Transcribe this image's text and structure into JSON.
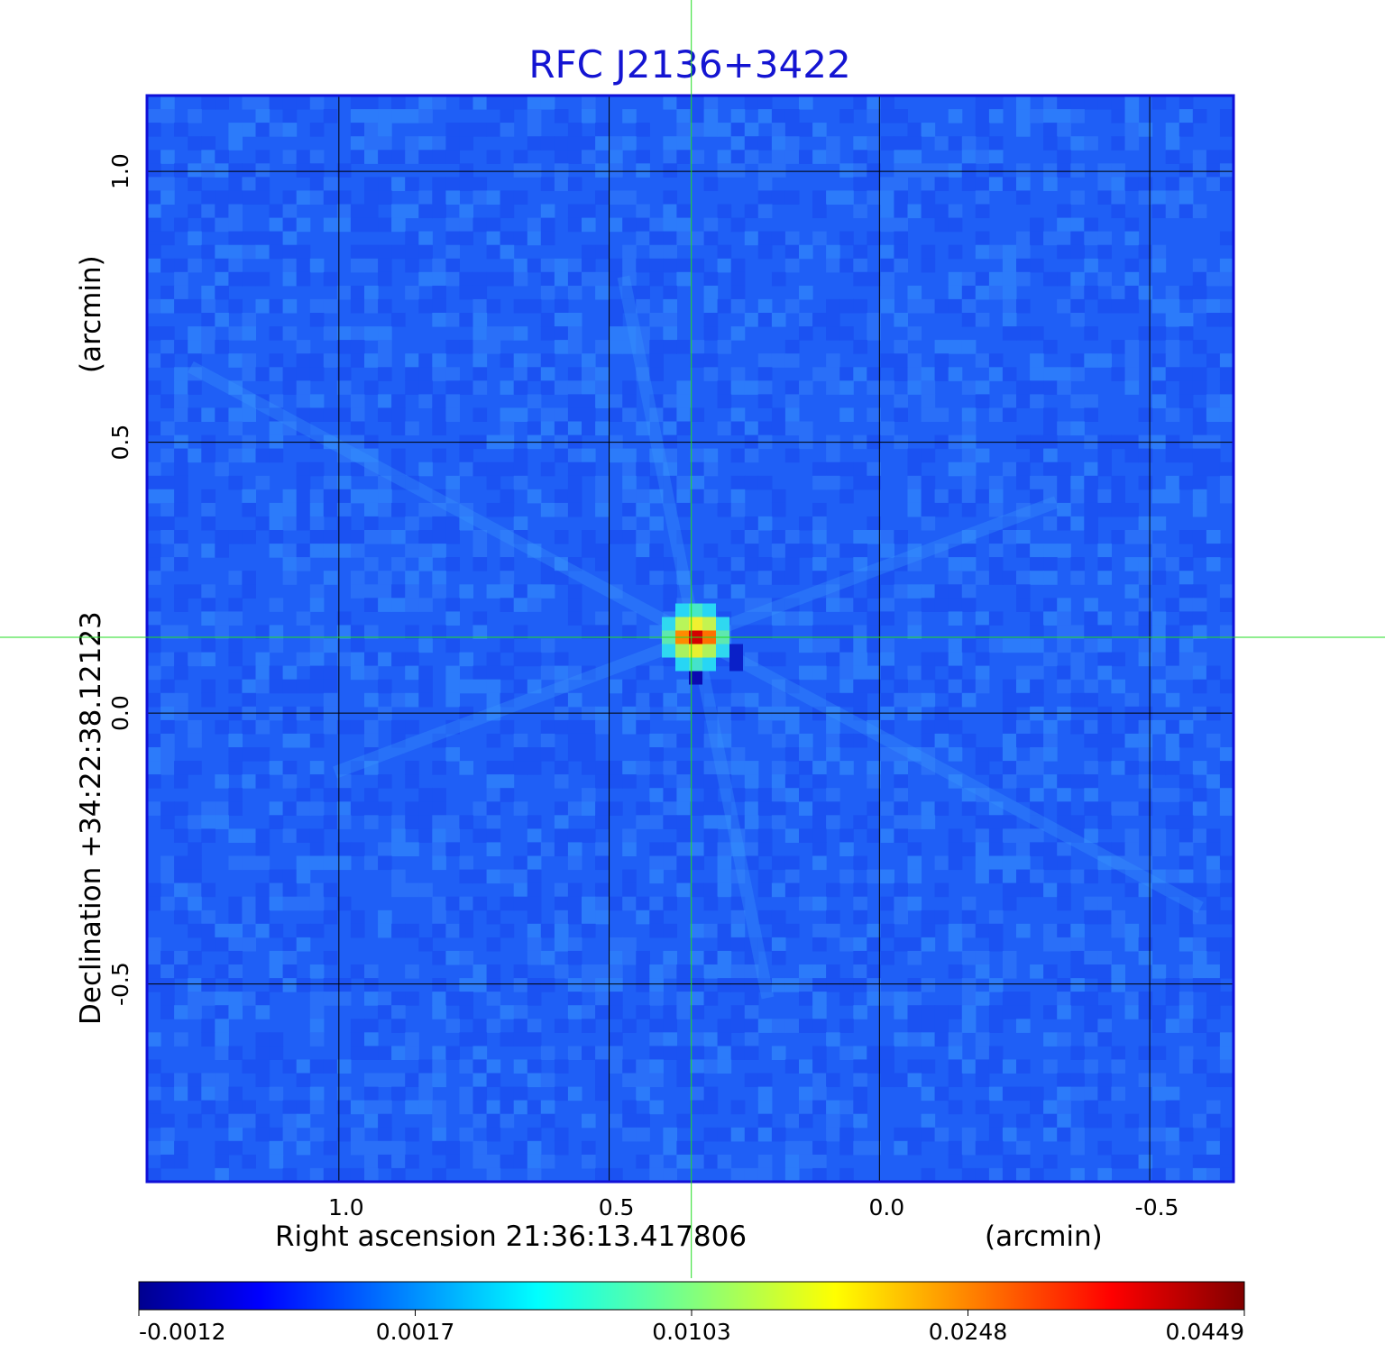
{
  "chart_data": {
    "type": "heatmap",
    "title": "RFC J2136+3422",
    "title_color": "#1414d2",
    "xlabel": "Right ascension  21:36:13.417806",
    "xunit": "(arcmin)",
    "ylabel": "Declination  +34:22:38.12123",
    "yunit": "(arcmin)",
    "x_ticks": [
      "1.0",
      "0.5",
      "0.0",
      "-0.5"
    ],
    "x_tick_values": [
      1.0,
      0.5,
      0.0,
      -0.5
    ],
    "y_ticks": [
      "1.0",
      "0.5",
      "0.0",
      "-0.5"
    ],
    "y_tick_values": [
      1.0,
      0.5,
      0.0,
      -0.5
    ],
    "xlim": [
      1.355,
      -0.655
    ],
    "ylim": [
      -0.865,
      1.14
    ],
    "grid": true,
    "grid_color": "#000000",
    "crosshair_color": "#22dd22",
    "crosshair": {
      "x": 0.348,
      "y": 0.14
    },
    "source": {
      "x": 0.34,
      "y": 0.14,
      "peak": 0.0449,
      "label": "RFC J2136+3422"
    },
    "colorbar": {
      "colormap": "jet",
      "ticks": [
        "-0.0012",
        "0.0017",
        "0.0103",
        "0.0248",
        "0.0449"
      ],
      "tick_values": [
        -0.0012,
        0.0017,
        0.0103,
        0.0248,
        0.0449
      ],
      "min": -0.0012,
      "max": 0.0449
    }
  }
}
